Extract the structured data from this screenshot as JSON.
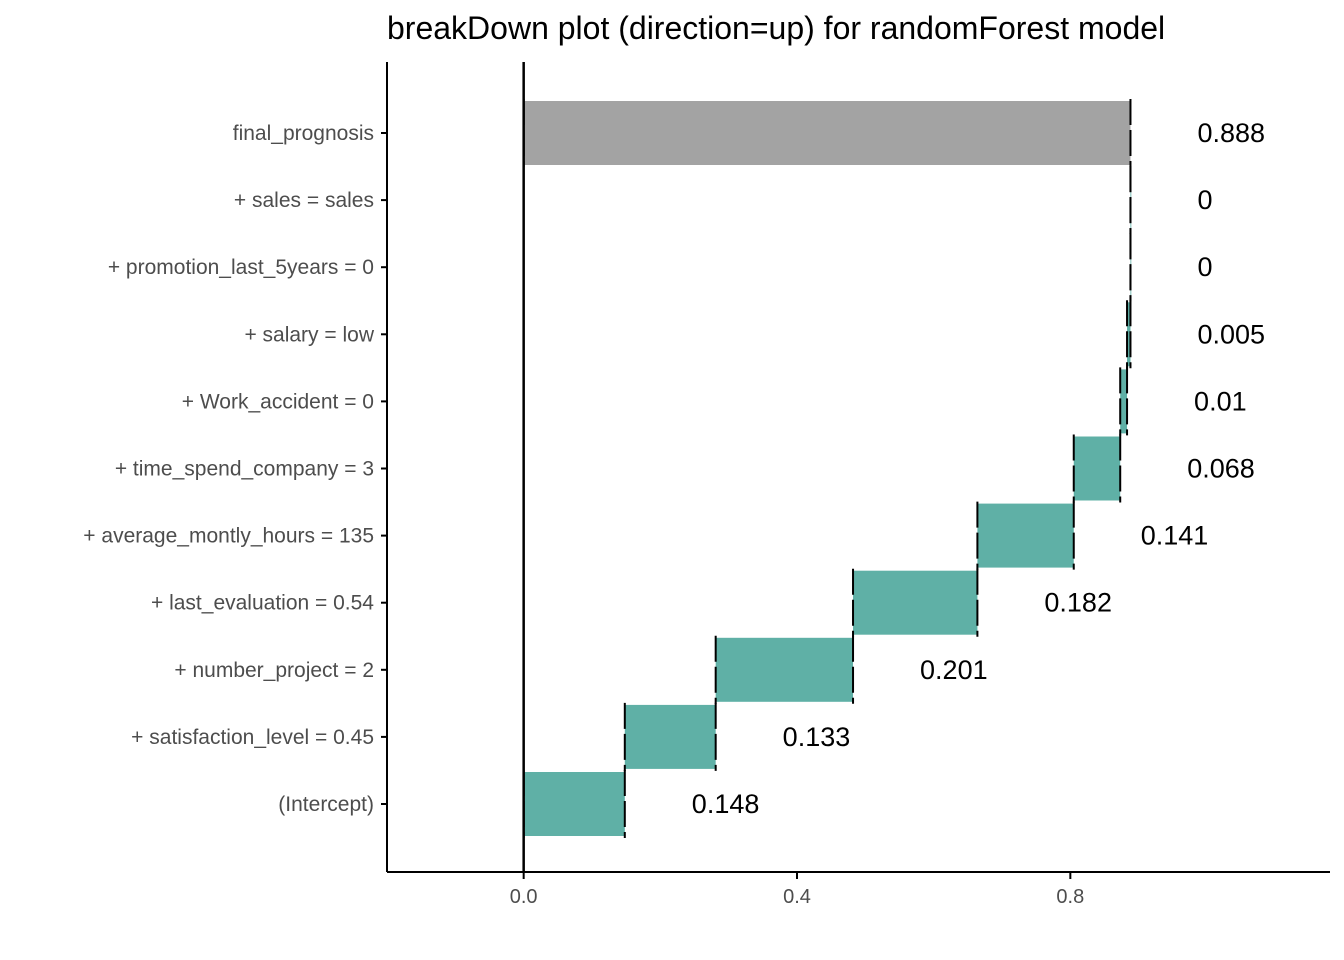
{
  "chart_data": {
    "type": "bar",
    "subtype": "waterfall-horizontal",
    "title": "breakDown plot (direction=up) for randomForest model",
    "xlabel": "",
    "ylabel": "",
    "xlim": [
      -0.2,
      1.18
    ],
    "xticks": [
      {
        "value": 0.0,
        "label": "0.0"
      },
      {
        "value": 0.4,
        "label": "0.4"
      },
      {
        "value": 0.8,
        "label": "0.8"
      }
    ],
    "grid": false,
    "colors": {
      "contribution": "#5fb0a6",
      "prediction": "#a3a3a3",
      "axis": "#000000"
    },
    "categories": [
      "final_prognosis",
      "+ sales = sales",
      "+ promotion_last_5years = 0",
      "+ salary = low",
      "+ Work_accident = 0",
      "+ time_spend_company = 3",
      "+ average_montly_hours = 135",
      "+ last_evaluation = 0.54",
      "+ number_project = 2",
      "+ satisfaction_level = 0.45",
      "(Intercept)"
    ],
    "bars": [
      {
        "start": 0.0,
        "end": 0.888,
        "label": "0.888",
        "kind": "prediction"
      },
      {
        "start": 0.888,
        "end": 0.888,
        "label": "0",
        "kind": "contribution"
      },
      {
        "start": 0.888,
        "end": 0.888,
        "label": "0",
        "kind": "contribution"
      },
      {
        "start": 0.883,
        "end": 0.888,
        "label": "0.005",
        "kind": "contribution"
      },
      {
        "start": 0.873,
        "end": 0.883,
        "label": "0.01",
        "kind": "contribution"
      },
      {
        "start": 0.805,
        "end": 0.873,
        "label": "0.068",
        "kind": "contribution"
      },
      {
        "start": 0.664,
        "end": 0.805,
        "label": "0.141",
        "kind": "contribution"
      },
      {
        "start": 0.482,
        "end": 0.664,
        "label": "0.182",
        "kind": "contribution"
      },
      {
        "start": 0.281,
        "end": 0.482,
        "label": "0.201",
        "kind": "contribution"
      },
      {
        "start": 0.148,
        "end": 0.281,
        "label": "0.133",
        "kind": "contribution"
      },
      {
        "start": 0.0,
        "end": 0.148,
        "label": "0.148",
        "kind": "contribution"
      }
    ]
  }
}
